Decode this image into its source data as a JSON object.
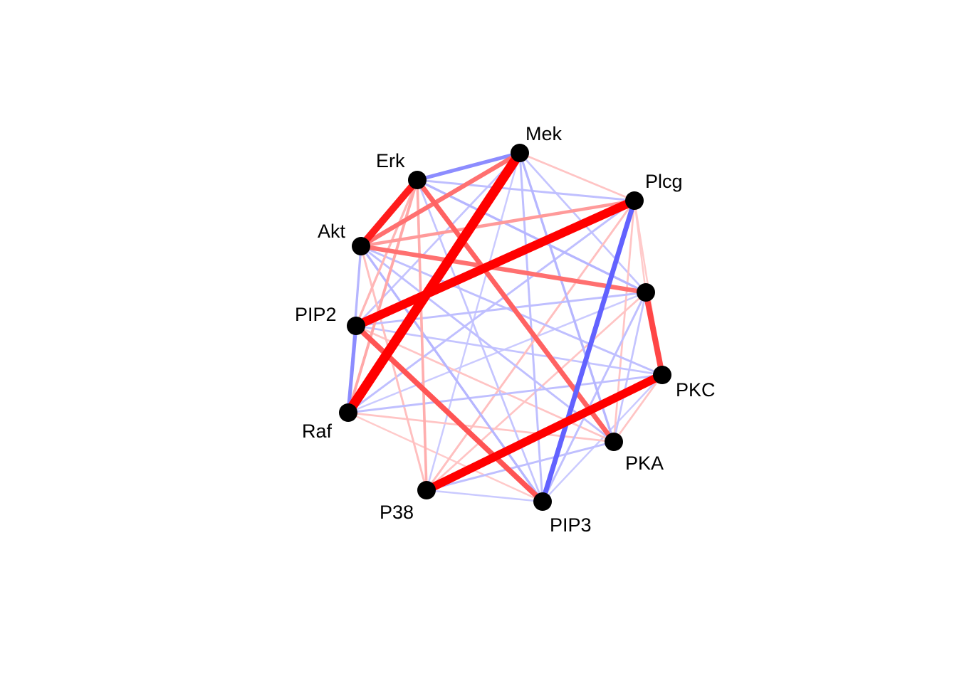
{
  "colors": {
    "positive": "#ff0000",
    "negative": "#0000ff",
    "node": "#000000",
    "label": "#000000",
    "background": "#ffffff"
  },
  "nodes": [
    {
      "id": "Mek",
      "label": "Mek"
    },
    {
      "id": "Erk",
      "label": "Erk"
    },
    {
      "id": "Plcg",
      "label": "Plcg"
    },
    {
      "id": "Akt",
      "label": "Akt"
    },
    {
      "id": "PIP2",
      "label": "PIP2"
    },
    {
      "id": "Raf",
      "label": "Raf"
    },
    {
      "id": "P38",
      "label": "P38"
    },
    {
      "id": "PIP3",
      "label": "PIP3"
    },
    {
      "id": "PKA",
      "label": "PKA"
    },
    {
      "id": "PKC",
      "label": "PKC"
    },
    {
      "id": "Jnk",
      "label": ""
    }
  ],
  "edges": [
    {
      "source": "Raf",
      "target": "Mek",
      "sign": "positive",
      "strength": 1.0
    },
    {
      "source": "PIP2",
      "target": "Plcg",
      "sign": "positive",
      "strength": 0.9
    },
    {
      "source": "P38",
      "target": "PKC",
      "sign": "positive",
      "strength": 0.85
    },
    {
      "source": "Erk",
      "target": "Akt",
      "sign": "positive",
      "strength": 0.7
    },
    {
      "source": "Jnk",
      "target": "PKC",
      "sign": "positive",
      "strength": 0.55
    },
    {
      "source": "PIP2",
      "target": "PIP3",
      "sign": "positive",
      "strength": 0.5
    },
    {
      "source": "Erk",
      "target": "PKA",
      "sign": "positive",
      "strength": 0.45
    },
    {
      "source": "Akt",
      "target": "Jnk",
      "sign": "positive",
      "strength": 0.4
    },
    {
      "source": "Akt",
      "target": "Mek",
      "sign": "positive",
      "strength": 0.4
    },
    {
      "source": "Plcg",
      "target": "PIP3",
      "sign": "negative",
      "strength": 0.45
    },
    {
      "source": "Erk",
      "target": "Mek",
      "sign": "negative",
      "strength": 0.3
    },
    {
      "source": "Raf",
      "target": "PIP2",
      "sign": "negative",
      "strength": 0.3
    },
    {
      "source": "Akt",
      "target": "Plcg",
      "sign": "positive",
      "strength": 0.25
    },
    {
      "source": "Akt",
      "target": "PIP3",
      "sign": "negative",
      "strength": 0.15
    },
    {
      "source": "Raf",
      "target": "Erk",
      "sign": "positive",
      "strength": 0.2
    },
    {
      "source": "P38",
      "target": "Erk",
      "sign": "positive",
      "strength": 0.18
    },
    {
      "source": "PIP2",
      "target": "Erk",
      "sign": "positive",
      "strength": 0.15
    },
    {
      "source": "Erk",
      "target": "Jnk",
      "sign": "negative",
      "strength": 0.15
    },
    {
      "source": "Erk",
      "target": "Plcg",
      "sign": "negative",
      "strength": 0.12
    },
    {
      "source": "Mek",
      "target": "PKA",
      "sign": "negative",
      "strength": 0.15
    },
    {
      "source": "Mek",
      "target": "PIP3",
      "sign": "negative",
      "strength": 0.12
    },
    {
      "source": "Mek",
      "target": "Jnk",
      "sign": "negative",
      "strength": 0.1
    },
    {
      "source": "Mek",
      "target": "Plcg",
      "sign": "positive",
      "strength": 0.1
    },
    {
      "source": "Mek",
      "target": "PIP2",
      "sign": "negative",
      "strength": 0.1
    },
    {
      "source": "Plcg",
      "target": "Raf",
      "sign": "negative",
      "strength": 0.12
    },
    {
      "source": "Plcg",
      "target": "P38",
      "sign": "positive",
      "strength": 0.12
    },
    {
      "source": "Plcg",
      "target": "PKA",
      "sign": "positive",
      "strength": 0.1
    },
    {
      "source": "Plcg",
      "target": "PKC",
      "sign": "positive",
      "strength": 0.08
    },
    {
      "source": "Akt",
      "target": "PKA",
      "sign": "negative",
      "strength": 0.12
    },
    {
      "source": "Akt",
      "target": "PKC",
      "sign": "negative",
      "strength": 0.12
    },
    {
      "source": "Akt",
      "target": "Raf",
      "sign": "negative",
      "strength": 0.15
    },
    {
      "source": "Akt",
      "target": "P38",
      "sign": "positive",
      "strength": 0.12
    },
    {
      "source": "PIP2",
      "target": "Jnk",
      "sign": "negative",
      "strength": 0.12
    },
    {
      "source": "PIP2",
      "target": "PKA",
      "sign": "positive",
      "strength": 0.1
    },
    {
      "source": "PIP2",
      "target": "PKC",
      "sign": "negative",
      "strength": 0.1
    },
    {
      "source": "PIP2",
      "target": "Mek",
      "sign": "positive",
      "strength": 0.08
    },
    {
      "source": "Raf",
      "target": "PKC",
      "sign": "negative",
      "strength": 0.12
    },
    {
      "source": "Raf",
      "target": "PKA",
      "sign": "positive",
      "strength": 0.1
    },
    {
      "source": "Raf",
      "target": "PIP3",
      "sign": "positive",
      "strength": 0.08
    },
    {
      "source": "Raf",
      "target": "Jnk",
      "sign": "negative",
      "strength": 0.08
    },
    {
      "source": "P38",
      "target": "PKA",
      "sign": "negative",
      "strength": 0.12
    },
    {
      "source": "P38",
      "target": "Jnk",
      "sign": "positive",
      "strength": 0.1
    },
    {
      "source": "P38",
      "target": "Mek",
      "sign": "negative",
      "strength": 0.08
    },
    {
      "source": "P38",
      "target": "PIP3",
      "sign": "negative",
      "strength": 0.08
    },
    {
      "source": "PIP3",
      "target": "Jnk",
      "sign": "negative",
      "strength": 0.12
    },
    {
      "source": "PIP3",
      "target": "PKC",
      "sign": "negative",
      "strength": 0.08
    },
    {
      "source": "PKA",
      "target": "Jnk",
      "sign": "negative",
      "strength": 0.1
    },
    {
      "source": "PKA",
      "target": "PKC",
      "sign": "positive",
      "strength": 0.1
    },
    {
      "source": "Erk",
      "target": "PIP3",
      "sign": "negative",
      "strength": 0.1
    },
    {
      "source": "Jnk",
      "target": "Plcg",
      "sign": "positive",
      "strength": 0.08
    }
  ]
}
